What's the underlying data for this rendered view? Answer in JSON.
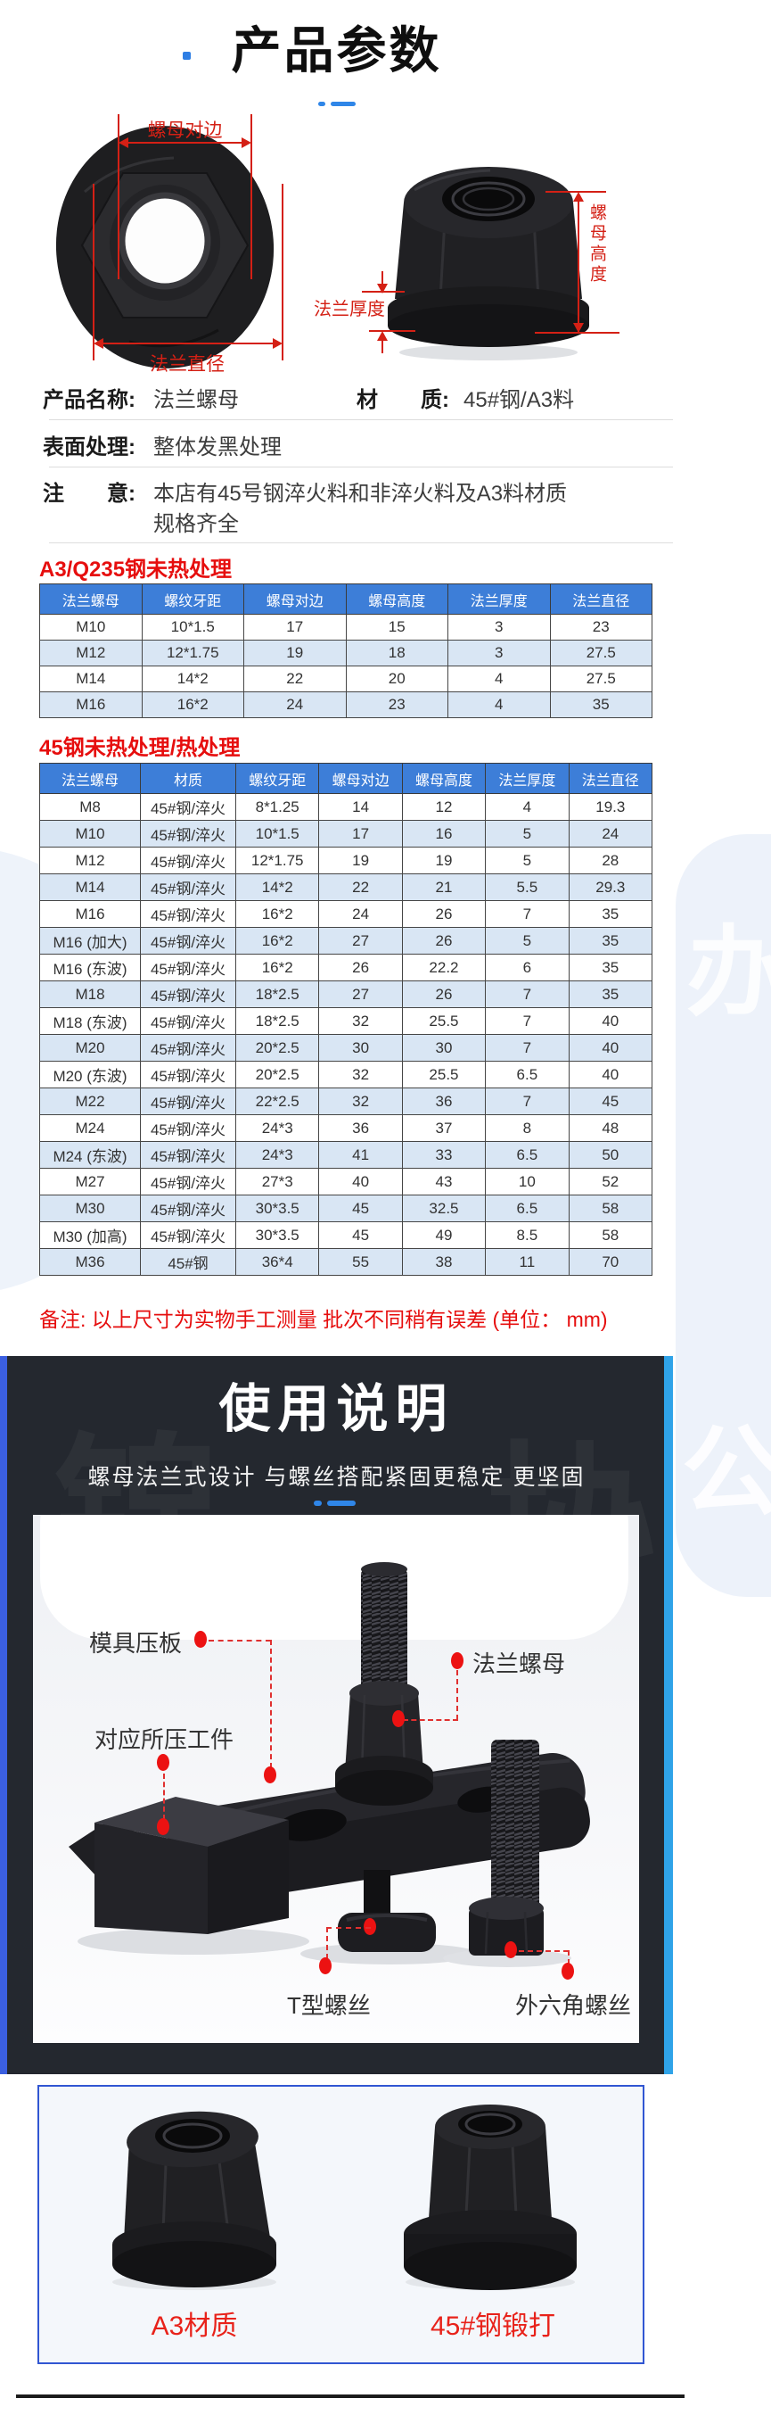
{
  "page": {
    "title": "产品参数"
  },
  "figure": {
    "dim_nut_width": "螺母对边",
    "dim_flange_dia": "法兰直径",
    "dim_nut_height": "螺母高度",
    "dim_flange_thickness": "法兰厚度"
  },
  "info": {
    "name_label": "产品名称:",
    "name_value": "法兰螺母",
    "material_label": "材　　质:",
    "material_value": "45#钢/A3料",
    "surface_label": "表面处理:",
    "surface_value": "整体发黑处理",
    "notice_label": "注　　意:",
    "notice_value": "本店有45号钢淬火料和非淬火料及A3料材质",
    "notice_value2": "规格齐全"
  },
  "section1": {
    "heading": "A3/Q235钢未热处理",
    "columns": [
      "法兰螺母",
      "螺纹牙距",
      "螺母对边",
      "螺母高度",
      "法兰厚度",
      "法兰直径"
    ],
    "rows": [
      [
        "M10",
        "10*1.5",
        "17",
        "15",
        "3",
        "23"
      ],
      [
        "M12",
        "12*1.75",
        "19",
        "18",
        "3",
        "27.5"
      ],
      [
        "M14",
        "14*2",
        "22",
        "20",
        "4",
        "27.5"
      ],
      [
        "M16",
        "16*2",
        "24",
        "23",
        "4",
        "35"
      ]
    ]
  },
  "section2": {
    "heading": "45钢未热处理/热处理",
    "columns": [
      "法兰螺母",
      "材质",
      "螺纹牙距",
      "螺母对边",
      "螺母高度",
      "法兰厚度",
      "法兰直径"
    ],
    "rows": [
      [
        "M8",
        "45#钢/淬火",
        "8*1.25",
        "14",
        "12",
        "4",
        "19.3"
      ],
      [
        "M10",
        "45#钢/淬火",
        "10*1.5",
        "17",
        "16",
        "5",
        "24"
      ],
      [
        "M12",
        "45#钢/淬火",
        "12*1.75",
        "19",
        "19",
        "5",
        "28"
      ],
      [
        "M14",
        "45#钢/淬火",
        "14*2",
        "22",
        "21",
        "5.5",
        "29.3"
      ],
      [
        "M16",
        "45#钢/淬火",
        "16*2",
        "24",
        "26",
        "7",
        "35"
      ],
      [
        "M16 (加大)",
        "45#钢/淬火",
        "16*2",
        "27",
        "26",
        "5",
        "35"
      ],
      [
        "M16 (东波)",
        "45#钢/淬火",
        "16*2",
        "26",
        "22.2",
        "6",
        "35"
      ],
      [
        "M18",
        "45#钢/淬火",
        "18*2.5",
        "27",
        "26",
        "7",
        "35"
      ],
      [
        "M18 (东波)",
        "45#钢/淬火",
        "18*2.5",
        "32",
        "25.5",
        "7",
        "40"
      ],
      [
        "M20",
        "45#钢/淬火",
        "20*2.5",
        "30",
        "30",
        "7",
        "40"
      ],
      [
        "M20 (东波)",
        "45#钢/淬火",
        "20*2.5",
        "32",
        "25.5",
        "6.5",
        "40"
      ],
      [
        "M22",
        "45#钢/淬火",
        "22*2.5",
        "32",
        "36",
        "7",
        "45"
      ],
      [
        "M24",
        "45#钢/淬火",
        "24*3",
        "36",
        "37",
        "8",
        "48"
      ],
      [
        "M24 (东波)",
        "45#钢/淬火",
        "24*3",
        "41",
        "33",
        "6.5",
        "50"
      ],
      [
        "M27",
        "45#钢/淬火",
        "27*3",
        "40",
        "43",
        "10",
        "52"
      ],
      [
        "M30",
        "45#钢/淬火",
        "30*3.5",
        "45",
        "32.5",
        "6.5",
        "58"
      ],
      [
        "M30 (加高)",
        "45#钢/淬火",
        "30*3.5",
        "45",
        "49",
        "8.5",
        "58"
      ],
      [
        "M36",
        "45#钢",
        "36*4",
        "55",
        "38",
        "11",
        "70"
      ]
    ]
  },
  "note": {
    "text": "备注: 以上尺寸为实物手工测量 批次不同稍有误差 (单位： mm)"
  },
  "usage": {
    "title": "使用说明",
    "subtitle": "螺母法兰式设计 与螺丝搭配紧固更稳定 更坚固",
    "labels": {
      "clamp_plate": "模具压板",
      "workpiece": "对应所压工件",
      "flange_nut": "法兰螺母",
      "t_bolt": "T型螺丝",
      "hex_bolt": "外六角螺丝"
    }
  },
  "bottom": {
    "left_label": "A3材质",
    "right_label": "45#钢锻打"
  },
  "watermark": {
    "glyph1": "锦",
    "glyph2": "协",
    "glyph3": "办",
    "glyph4": "公"
  },
  "colors": {
    "table_header_blue": "#3d7ed8",
    "row_alt_blue": "#d9e6f4",
    "heading_red": "#e60e0e",
    "annotation_red": "#d42015",
    "panel_dark": "#24282f",
    "accent_blue_left": "#3b5fe0",
    "accent_blue_right": "#2fa3e8"
  }
}
